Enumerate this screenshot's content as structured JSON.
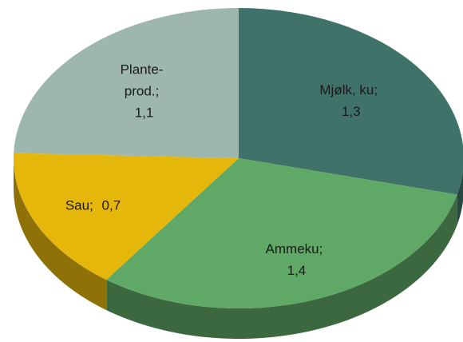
{
  "chart_data": {
    "type": "pie3d",
    "categories": [
      "Mjølk, ku",
      "Ammeku",
      "Sau",
      "Plante-prod."
    ],
    "values": [
      1.3,
      1.4,
      0.7,
      1.1
    ],
    "value_labels": [
      "1,3",
      "1,4",
      "0,7",
      "1,1"
    ],
    "label_separator": ";",
    "colors": [
      "#3f7369",
      "#5fa866",
      "#e5b70b",
      "#9db6ae"
    ]
  }
}
